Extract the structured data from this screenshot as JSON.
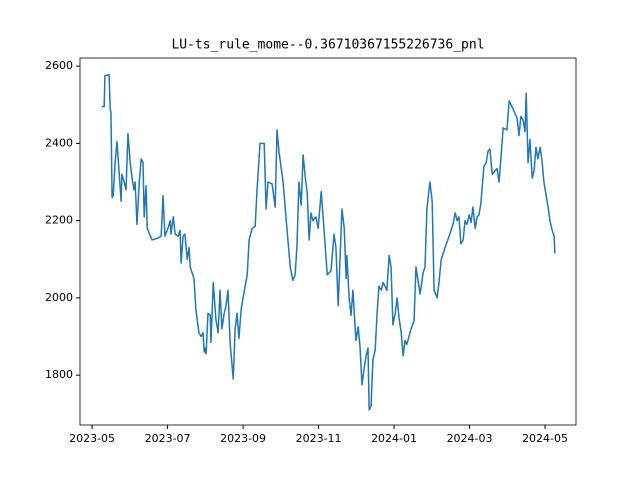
{
  "chart_data": {
    "type": "line",
    "title": "LU-ts_rule_mome--0.36710367155226736_pnl",
    "xlim": [
      -0.32,
      12.82
    ],
    "ylim": [
      1671,
      2621
    ],
    "xticks": [
      {
        "value": 0,
        "label": "2023-05"
      },
      {
        "value": 2,
        "label": "2023-07"
      },
      {
        "value": 4,
        "label": "2023-09"
      },
      {
        "value": 6,
        "label": "2023-11"
      },
      {
        "value": 8,
        "label": "2024-01"
      },
      {
        "value": 10,
        "label": "2024-03"
      },
      {
        "value": 12,
        "label": "2024-05"
      }
    ],
    "yticks": [
      1800,
      2000,
      2200,
      2400,
      2600
    ],
    "series": [
      {
        "color": "#1f77b4",
        "x": [
          0.26,
          0.32,
          0.34,
          0.45,
          0.48,
          0.5,
          0.53,
          0.56,
          0.61,
          0.66,
          0.72,
          0.77,
          0.79,
          0.85,
          0.9,
          0.95,
          1.01,
          1.06,
          1.11,
          1.14,
          1.19,
          1.25,
          1.3,
          1.35,
          1.38,
          1.43,
          1.46,
          1.59,
          1.75,
          1.83,
          1.88,
          1.93,
          2.01,
          2.07,
          2.09,
          2.15,
          2.2,
          2.28,
          2.33,
          2.36,
          2.41,
          2.46,
          2.52,
          2.57,
          2.6,
          2.7,
          2.75,
          2.83,
          2.89,
          2.94,
          2.97,
          2.99,
          3.02,
          3.07,
          3.13,
          3.15,
          3.21,
          3.28,
          3.34,
          3.39,
          3.44,
          3.5,
          3.55,
          3.6,
          3.66,
          3.74,
          3.79,
          3.84,
          3.89,
          3.95,
          4.0,
          4.11,
          4.16,
          4.24,
          4.32,
          4.37,
          4.45,
          4.56,
          4.61,
          4.66,
          4.77,
          4.85,
          4.9,
          4.95,
          5.06,
          5.17,
          5.25,
          5.32,
          5.38,
          5.43,
          5.48,
          5.54,
          5.59,
          5.64,
          5.7,
          5.75,
          5.8,
          5.85,
          5.93,
          5.99,
          6.07,
          6.12,
          6.23,
          6.33,
          6.41,
          6.46,
          6.52,
          6.62,
          6.68,
          6.73,
          6.75,
          6.81,
          6.86,
          6.91,
          6.99,
          7.05,
          7.1,
          7.15,
          7.21,
          7.26,
          7.31,
          7.34,
          7.39,
          7.44,
          7.5,
          7.55,
          7.6,
          7.66,
          7.71,
          7.76,
          7.81,
          7.87,
          7.92,
          7.97,
          8.03,
          8.08,
          8.13,
          8.19,
          8.24,
          8.29,
          8.34,
          8.45,
          8.53,
          8.58,
          8.69,
          8.77,
          8.82,
          8.87,
          8.95,
          9.01,
          9.06,
          9.14,
          9.19,
          9.25,
          9.35,
          9.46,
          9.56,
          9.62,
          9.67,
          9.72,
          9.77,
          9.83,
          9.88,
          9.93,
          9.99,
          10.04,
          10.09,
          10.15,
          10.2,
          10.25,
          10.3,
          10.38,
          10.44,
          10.49,
          10.54,
          10.6,
          10.73,
          10.78,
          10.83,
          10.89,
          10.99,
          11.05,
          11.15,
          11.26,
          11.31,
          11.36,
          11.42,
          11.47,
          11.5,
          11.55,
          11.6,
          11.66,
          11.71,
          11.76,
          11.81,
          11.87,
          11.92,
          11.97,
          12.08,
          12.13,
          12.19,
          12.24,
          12.26
        ],
        "values": [
          2495,
          2495,
          2575,
          2578,
          2490,
          2480,
          2260,
          2265,
          2350,
          2405,
          2320,
          2250,
          2320,
          2300,
          2280,
          2425,
          2350,
          2310,
          2280,
          2300,
          2190,
          2300,
          2360,
          2350,
          2210,
          2290,
          2180,
          2150,
          2155,
          2160,
          2265,
          2160,
          2180,
          2200,
          2165,
          2210,
          2165,
          2160,
          2175,
          2090,
          2160,
          2165,
          2100,
          2130,
          2080,
          2050,
          1970,
          1910,
          1900,
          1910,
          1860,
          1870,
          1855,
          1960,
          1955,
          1885,
          2040,
          1945,
          1910,
          2020,
          1920,
          1960,
          1980,
          2020,
          1880,
          1790,
          1920,
          1960,
          1895,
          1970,
          2000,
          2060,
          2150,
          2180,
          2185,
          2280,
          2400,
          2400,
          2230,
          2300,
          2295,
          2235,
          2435,
          2380,
          2300,
          2170,
          2080,
          2045,
          2060,
          2140,
          2300,
          2240,
          2370,
          2320,
          2270,
          2150,
          2220,
          2200,
          2210,
          2180,
          2275,
          2210,
          2060,
          2070,
          2165,
          2130,
          1980,
          2230,
          2180,
          2050,
          2110,
          2000,
          1955,
          2020,
          1890,
          1925,
          1870,
          1775,
          1820,
          1850,
          1870,
          1710,
          1720,
          1840,
          1865,
          1960,
          2030,
          2020,
          2040,
          2030,
          2020,
          2110,
          2080,
          1930,
          1960,
          2000,
          1950,
          1910,
          1850,
          1890,
          1880,
          1920,
          1940,
          2080,
          2010,
          2065,
          2080,
          2230,
          2300,
          2250,
          2020,
          2000,
          2040,
          2100,
          2130,
          2160,
          2190,
          2220,
          2200,
          2210,
          2140,
          2150,
          2200,
          2190,
          2215,
          2195,
          2235,
          2180,
          2210,
          2215,
          2245,
          2340,
          2350,
          2380,
          2385,
          2320,
          2335,
          2300,
          2360,
          2440,
          2435,
          2510,
          2490,
          2465,
          2420,
          2470,
          2460,
          2430,
          2530,
          2350,
          2410,
          2310,
          2330,
          2390,
          2360,
          2390,
          2355,
          2300,
          2235,
          2200,
          2175,
          2160,
          2115
        ]
      }
    ]
  }
}
